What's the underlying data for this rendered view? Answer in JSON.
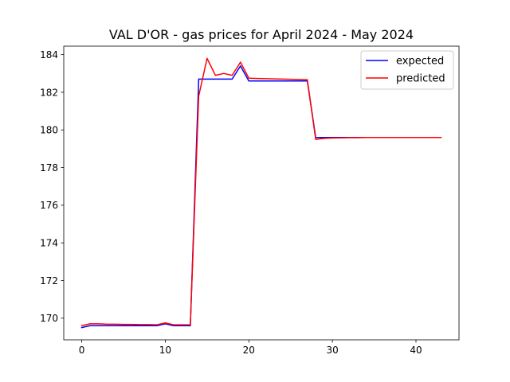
{
  "chart_data": {
    "type": "line",
    "title": "VAL D'OR - gas prices for April 2024 - May 2024",
    "xlabel": "",
    "ylabel": "",
    "xlim": [
      -2.15,
      45.15
    ],
    "ylim": [
      168.85,
      184.45
    ],
    "xticks": [
      0,
      10,
      20,
      30,
      40
    ],
    "yticks": [
      170,
      172,
      174,
      176,
      178,
      180,
      182,
      184
    ],
    "grid": false,
    "legend_position": "top-right",
    "series": [
      {
        "name": "expected",
        "color": "#0000ff",
        "x": [
          0,
          1,
          2,
          3,
          4,
          5,
          6,
          7,
          8,
          9,
          10,
          11,
          12,
          13,
          14,
          15,
          16,
          17,
          18,
          19,
          20,
          21,
          22,
          23,
          24,
          25,
          26,
          27,
          28,
          29,
          30,
          31,
          32,
          33,
          34,
          35,
          36,
          37,
          38,
          39,
          40,
          41,
          42,
          43
        ],
        "values": [
          169.5,
          169.6,
          169.6,
          169.6,
          169.6,
          169.6,
          169.6,
          169.6,
          169.6,
          169.6,
          169.7,
          169.6,
          169.6,
          169.6,
          182.7,
          182.7,
          182.7,
          182.7,
          182.7,
          183.4,
          182.6,
          182.6,
          182.6,
          182.6,
          182.6,
          182.6,
          182.6,
          182.6,
          179.6,
          179.6,
          179.6,
          179.6,
          179.6,
          179.6,
          179.6,
          179.6,
          179.6,
          179.6,
          179.6,
          179.6,
          179.6,
          179.6,
          179.6,
          179.6
        ]
      },
      {
        "name": "predicted",
        "color": "#ff0000",
        "x": [
          0,
          1,
          2,
          3,
          4,
          5,
          6,
          7,
          8,
          9,
          10,
          11,
          12,
          13,
          14,
          15,
          16,
          17,
          18,
          19,
          20,
          21,
          22,
          23,
          24,
          25,
          26,
          27,
          28,
          29,
          30,
          31,
          32,
          33,
          34,
          35,
          36,
          37,
          38,
          39,
          40,
          41,
          42,
          43
        ],
        "values": [
          169.6,
          169.7,
          169.7,
          169.68,
          169.68,
          169.67,
          169.67,
          169.66,
          169.66,
          169.65,
          169.75,
          169.65,
          169.65,
          169.65,
          181.8,
          183.8,
          182.9,
          183.0,
          182.9,
          183.6,
          182.75,
          182.73,
          182.72,
          182.71,
          182.7,
          182.69,
          182.68,
          182.67,
          179.5,
          179.55,
          179.57,
          179.58,
          179.59,
          179.59,
          179.6,
          179.6,
          179.6,
          179.6,
          179.6,
          179.6,
          179.6,
          179.6,
          179.6,
          179.6
        ]
      }
    ]
  }
}
